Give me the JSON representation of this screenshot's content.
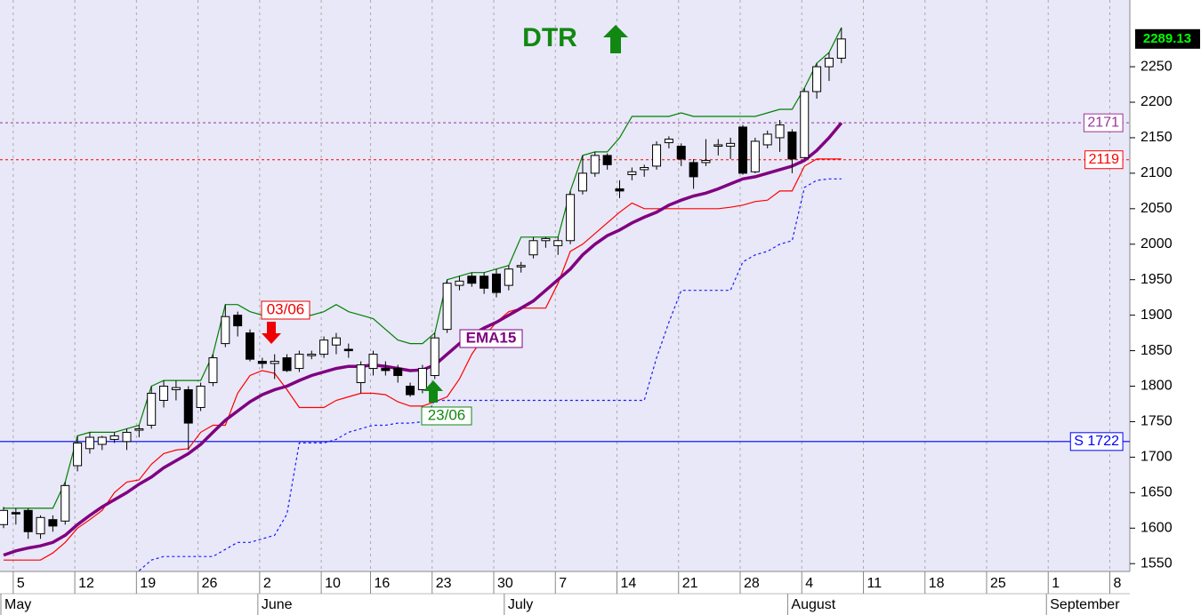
{
  "chart_data": {
    "type": "candlestick",
    "title": "DTR",
    "categories": [
      null,
      "5",
      null,
      null,
      null,
      null,
      "12",
      null,
      null,
      null,
      null,
      "19",
      null,
      null,
      null,
      null,
      "26",
      null,
      null,
      null,
      null,
      "2",
      null,
      null,
      null,
      null,
      "10",
      null,
      null,
      null,
      "16",
      null,
      null,
      null,
      null,
      "23",
      null,
      null,
      null,
      null,
      "30",
      null,
      null,
      null,
      null,
      "7",
      null,
      null,
      null,
      null,
      "14",
      null,
      null,
      null,
      null,
      "21",
      null,
      null,
      null,
      null,
      "28",
      null,
      null,
      null,
      null,
      "4",
      null,
      null,
      null,
      null,
      "11",
      null,
      null,
      null,
      null,
      "18",
      null,
      null,
      null,
      null,
      "25",
      null,
      null,
      null,
      null,
      "1",
      null,
      null,
      null,
      null,
      "8",
      null
    ],
    "months": [
      {
        "name": "May",
        "from": 0
      },
      {
        "name": "June",
        "from": 21
      },
      {
        "name": "July",
        "from": 41
      },
      {
        "name": "August",
        "from": 64
      },
      {
        "name": "September",
        "from": 85
      }
    ],
    "ohlc": {
      "open": [
        1605,
        1622,
        1625,
        1592,
        1612,
        1610,
        1688,
        1712,
        1718,
        1725,
        1722,
        1738,
        1745,
        1780,
        1795,
        1795,
        1770,
        1805,
        1860,
        1900,
        1875,
        1835,
        1832,
        1840,
        1825,
        1843,
        1845,
        1858,
        1852,
        1805,
        1825,
        1825,
        1825,
        1800,
        1795,
        1815,
        1880,
        1942,
        1955,
        1955,
        1958,
        1942,
        1968,
        1985,
        2005,
        1998,
        2005,
        2075,
        2100,
        2125,
        2078,
        2098,
        2105,
        2110,
        2143,
        2138,
        2115,
        2115,
        2138,
        2138,
        2165,
        2102,
        2140,
        2150,
        2158,
        2122,
        2215,
        2250,
        2262,
        null,
        null,
        null,
        null,
        null,
        null,
        null,
        null,
        null,
        null,
        null,
        null,
        null,
        null,
        null,
        null,
        null,
        null,
        null,
        null,
        null,
        null,
        null
      ],
      "high": [
        1630,
        1628,
        1628,
        1618,
        1618,
        1665,
        1730,
        1735,
        1730,
        1735,
        1740,
        1745,
        1800,
        1808,
        1808,
        1800,
        1805,
        1845,
        1915,
        1905,
        1880,
        1840,
        1845,
        1845,
        1850,
        1850,
        1870,
        1875,
        1860,
        1835,
        1850,
        1835,
        1830,
        1805,
        1830,
        1875,
        1950,
        1955,
        1960,
        1960,
        1965,
        1970,
        1975,
        2010,
        2010,
        2010,
        2075,
        2125,
        2130,
        2128,
        2090,
        2108,
        2112,
        2145,
        2152,
        2142,
        2120,
        2148,
        2148,
        2150,
        2168,
        2150,
        2160,
        2175,
        2162,
        2220,
        2255,
        2270,
        2305,
        null,
        null,
        null,
        null,
        null,
        null,
        null,
        null,
        null,
        null,
        null,
        null,
        null,
        null,
        null,
        null,
        null,
        null,
        null,
        null,
        null,
        null,
        null
      ],
      "low": [
        1600,
        1605,
        1585,
        1585,
        1595,
        1605,
        1680,
        1705,
        1710,
        1720,
        1710,
        1728,
        1740,
        1770,
        1780,
        1710,
        1765,
        1800,
        1855,
        1870,
        1835,
        1825,
        1810,
        1820,
        1820,
        1838,
        1840,
        1845,
        1840,
        1790,
        1815,
        1815,
        1805,
        1785,
        1790,
        1810,
        1875,
        1935,
        1940,
        1930,
        1925,
        1935,
        1960,
        1980,
        1995,
        1985,
        2000,
        2070,
        2095,
        2105,
        2065,
        2090,
        2095,
        2105,
        2135,
        2110,
        2078,
        2110,
        2125,
        2120,
        2098,
        2100,
        2135,
        2130,
        2100,
        2120,
        2205,
        2230,
        2255,
        null,
        null,
        null,
        null,
        null,
        null,
        null,
        null,
        null,
        null,
        null,
        null,
        null,
        null,
        null,
        null,
        null,
        null,
        null,
        null,
        null,
        null,
        null
      ],
      "close": [
        1625,
        1620,
        1595,
        1615,
        1603,
        1660,
        1720,
        1728,
        1728,
        1730,
        1735,
        1740,
        1790,
        1800,
        1798,
        1748,
        1800,
        1840,
        1898,
        1885,
        1838,
        1832,
        1835,
        1822,
        1845,
        1845,
        1865,
        1868,
        1850,
        1830,
        1845,
        1822,
        1815,
        1788,
        1825,
        1868,
        1945,
        1948,
        1945,
        1938,
        1932,
        1965,
        1970,
        2005,
        2008,
        2005,
        2070,
        2100,
        2125,
        2112,
        2075,
        2102,
        2108,
        2140,
        2148,
        2120,
        2095,
        2118,
        2140,
        2142,
        2100,
        2145,
        2155,
        2168,
        2120,
        2215,
        2250,
        2262,
        2289.13,
        null,
        null,
        null,
        null,
        null,
        null,
        null,
        null,
        null,
        null,
        null,
        null,
        null,
        null,
        null,
        null,
        null,
        null,
        null,
        null,
        null,
        null,
        null
      ]
    },
    "lines": [
      {
        "color": "#008000",
        "width": 1.2,
        "dash": "none",
        "values": [
          1628,
          1628,
          1628,
          1628,
          1628,
          1665,
          1730,
          1735,
          1735,
          1735,
          1740,
          1745,
          1800,
          1808,
          1808,
          1808,
          1808,
          1845,
          1915,
          1915,
          1905,
          1900,
          1900,
          1900,
          1900,
          1900,
          1905,
          1915,
          1905,
          1900,
          1895,
          1880,
          1865,
          1860,
          1860,
          1875,
          1950,
          1955,
          1960,
          1960,
          1965,
          1970,
          2010,
          2010,
          2010,
          2010,
          2075,
          2125,
          2130,
          2130,
          2150,
          2180,
          2180,
          2180,
          2180,
          2185,
          2180,
          2180,
          2180,
          2180,
          2180,
          2180,
          2185,
          2190,
          2190,
          2220,
          2255,
          2270,
          2305,
          null,
          null,
          null,
          null,
          null,
          null,
          null,
          null,
          null,
          null,
          null,
          null,
          null,
          null,
          null,
          null,
          null,
          null,
          null,
          null,
          null,
          null,
          null
        ]
      },
      {
        "color": "#ff0000",
        "width": 1.2,
        "dash": "none",
        "values": [
          1555,
          1555,
          1555,
          1555,
          1565,
          1580,
          1600,
          1612,
          1625,
          1650,
          1665,
          1668,
          1690,
          1705,
          1710,
          1712,
          1735,
          1745,
          1745,
          1790,
          1815,
          1822,
          1818,
          1795,
          1770,
          1770,
          1770,
          1780,
          1785,
          1790,
          1790,
          1788,
          1778,
          1772,
          1772,
          1778,
          1785,
          1810,
          1845,
          1870,
          1890,
          1905,
          1910,
          1910,
          1910,
          1945,
          1990,
          2000,
          2015,
          2030,
          2045,
          2058,
          2050,
          2050,
          2050,
          2050,
          2050,
          2050,
          2050,
          2052,
          2055,
          2060,
          2062,
          2075,
          2075,
          2110,
          2120,
          2120,
          2120,
          null,
          null,
          null,
          null,
          null,
          null,
          null,
          null,
          null,
          null,
          null,
          null,
          null,
          null,
          null,
          null,
          null,
          null,
          null,
          null,
          null,
          null,
          null
        ]
      },
      {
        "color": "#1a1aff",
        "width": 1.2,
        "dash": "3 3",
        "values": [
          null,
          null,
          null,
          null,
          null,
          null,
          null,
          null,
          null,
          null,
          null,
          1540,
          1555,
          1560,
          1560,
          1560,
          1560,
          1560,
          1570,
          1580,
          1580,
          1585,
          1590,
          1620,
          1720,
          1720,
          1720,
          1725,
          1735,
          1740,
          1745,
          1745,
          1748,
          1748,
          1750,
          1780,
          1780,
          1780,
          1780,
          1780,
          1780,
          1780,
          1780,
          1780,
          1780,
          1780,
          1780,
          1780,
          1780,
          1780,
          1780,
          1780,
          1780,
          1840,
          1890,
          1935,
          1935,
          1935,
          1935,
          1935,
          1975,
          1985,
          1990,
          2000,
          2005,
          2080,
          2090,
          2092,
          2092,
          null,
          null,
          null,
          null,
          null,
          null,
          null,
          null,
          null,
          null,
          null,
          null,
          null,
          null,
          null,
          null,
          null,
          null,
          null,
          null,
          null,
          null,
          null
        ]
      },
      {
        "name": "EMA15",
        "color": "#800080",
        "width": 3.5,
        "dash": "none",
        "values": [
          1562,
          1568,
          1572,
          1575,
          1580,
          1590,
          1605,
          1618,
          1630,
          1640,
          1650,
          1662,
          1672,
          1685,
          1695,
          1705,
          1718,
          1735,
          1752,
          1765,
          1778,
          1788,
          1795,
          1800,
          1808,
          1815,
          1820,
          1825,
          1828,
          1828,
          1830,
          1828,
          1825,
          1822,
          1823,
          1830,
          1845,
          1860,
          1872,
          1882,
          1890,
          1900,
          1910,
          1920,
          1935,
          1950,
          1965,
          1985,
          2000,
          2012,
          2020,
          2030,
          2038,
          2045,
          2055,
          2062,
          2068,
          2072,
          2078,
          2085,
          2092,
          2095,
          2100,
          2105,
          2110,
          2118,
          2132,
          2150,
          2171,
          null,
          null,
          null,
          null,
          null,
          null,
          null,
          null,
          null,
          null,
          null,
          null,
          null,
          null,
          null,
          null,
          null,
          null,
          null,
          null,
          null,
          null,
          null
        ]
      }
    ],
    "hlines": [
      {
        "value": 2171,
        "color": "#993399"
      },
      {
        "value": 2119,
        "color": "#ff0000"
      },
      {
        "value": 1722,
        "label": "S 1722",
        "color": "#0000ff",
        "solid": true
      }
    ],
    "annotations": {
      "sell": "03/06",
      "buy": "23/06"
    },
    "ylim": [
      1539,
      2344
    ],
    "yticks": [
      1550,
      1600,
      1650,
      1700,
      1750,
      1800,
      1850,
      1900,
      1950,
      2000,
      2050,
      2100,
      2150,
      2200,
      2250
    ],
    "grid": "x",
    "up_color": "#ffffff",
    "down_color": "#000000",
    "background": "#e8e8f8",
    "last_price_color": "#00ff00"
  }
}
